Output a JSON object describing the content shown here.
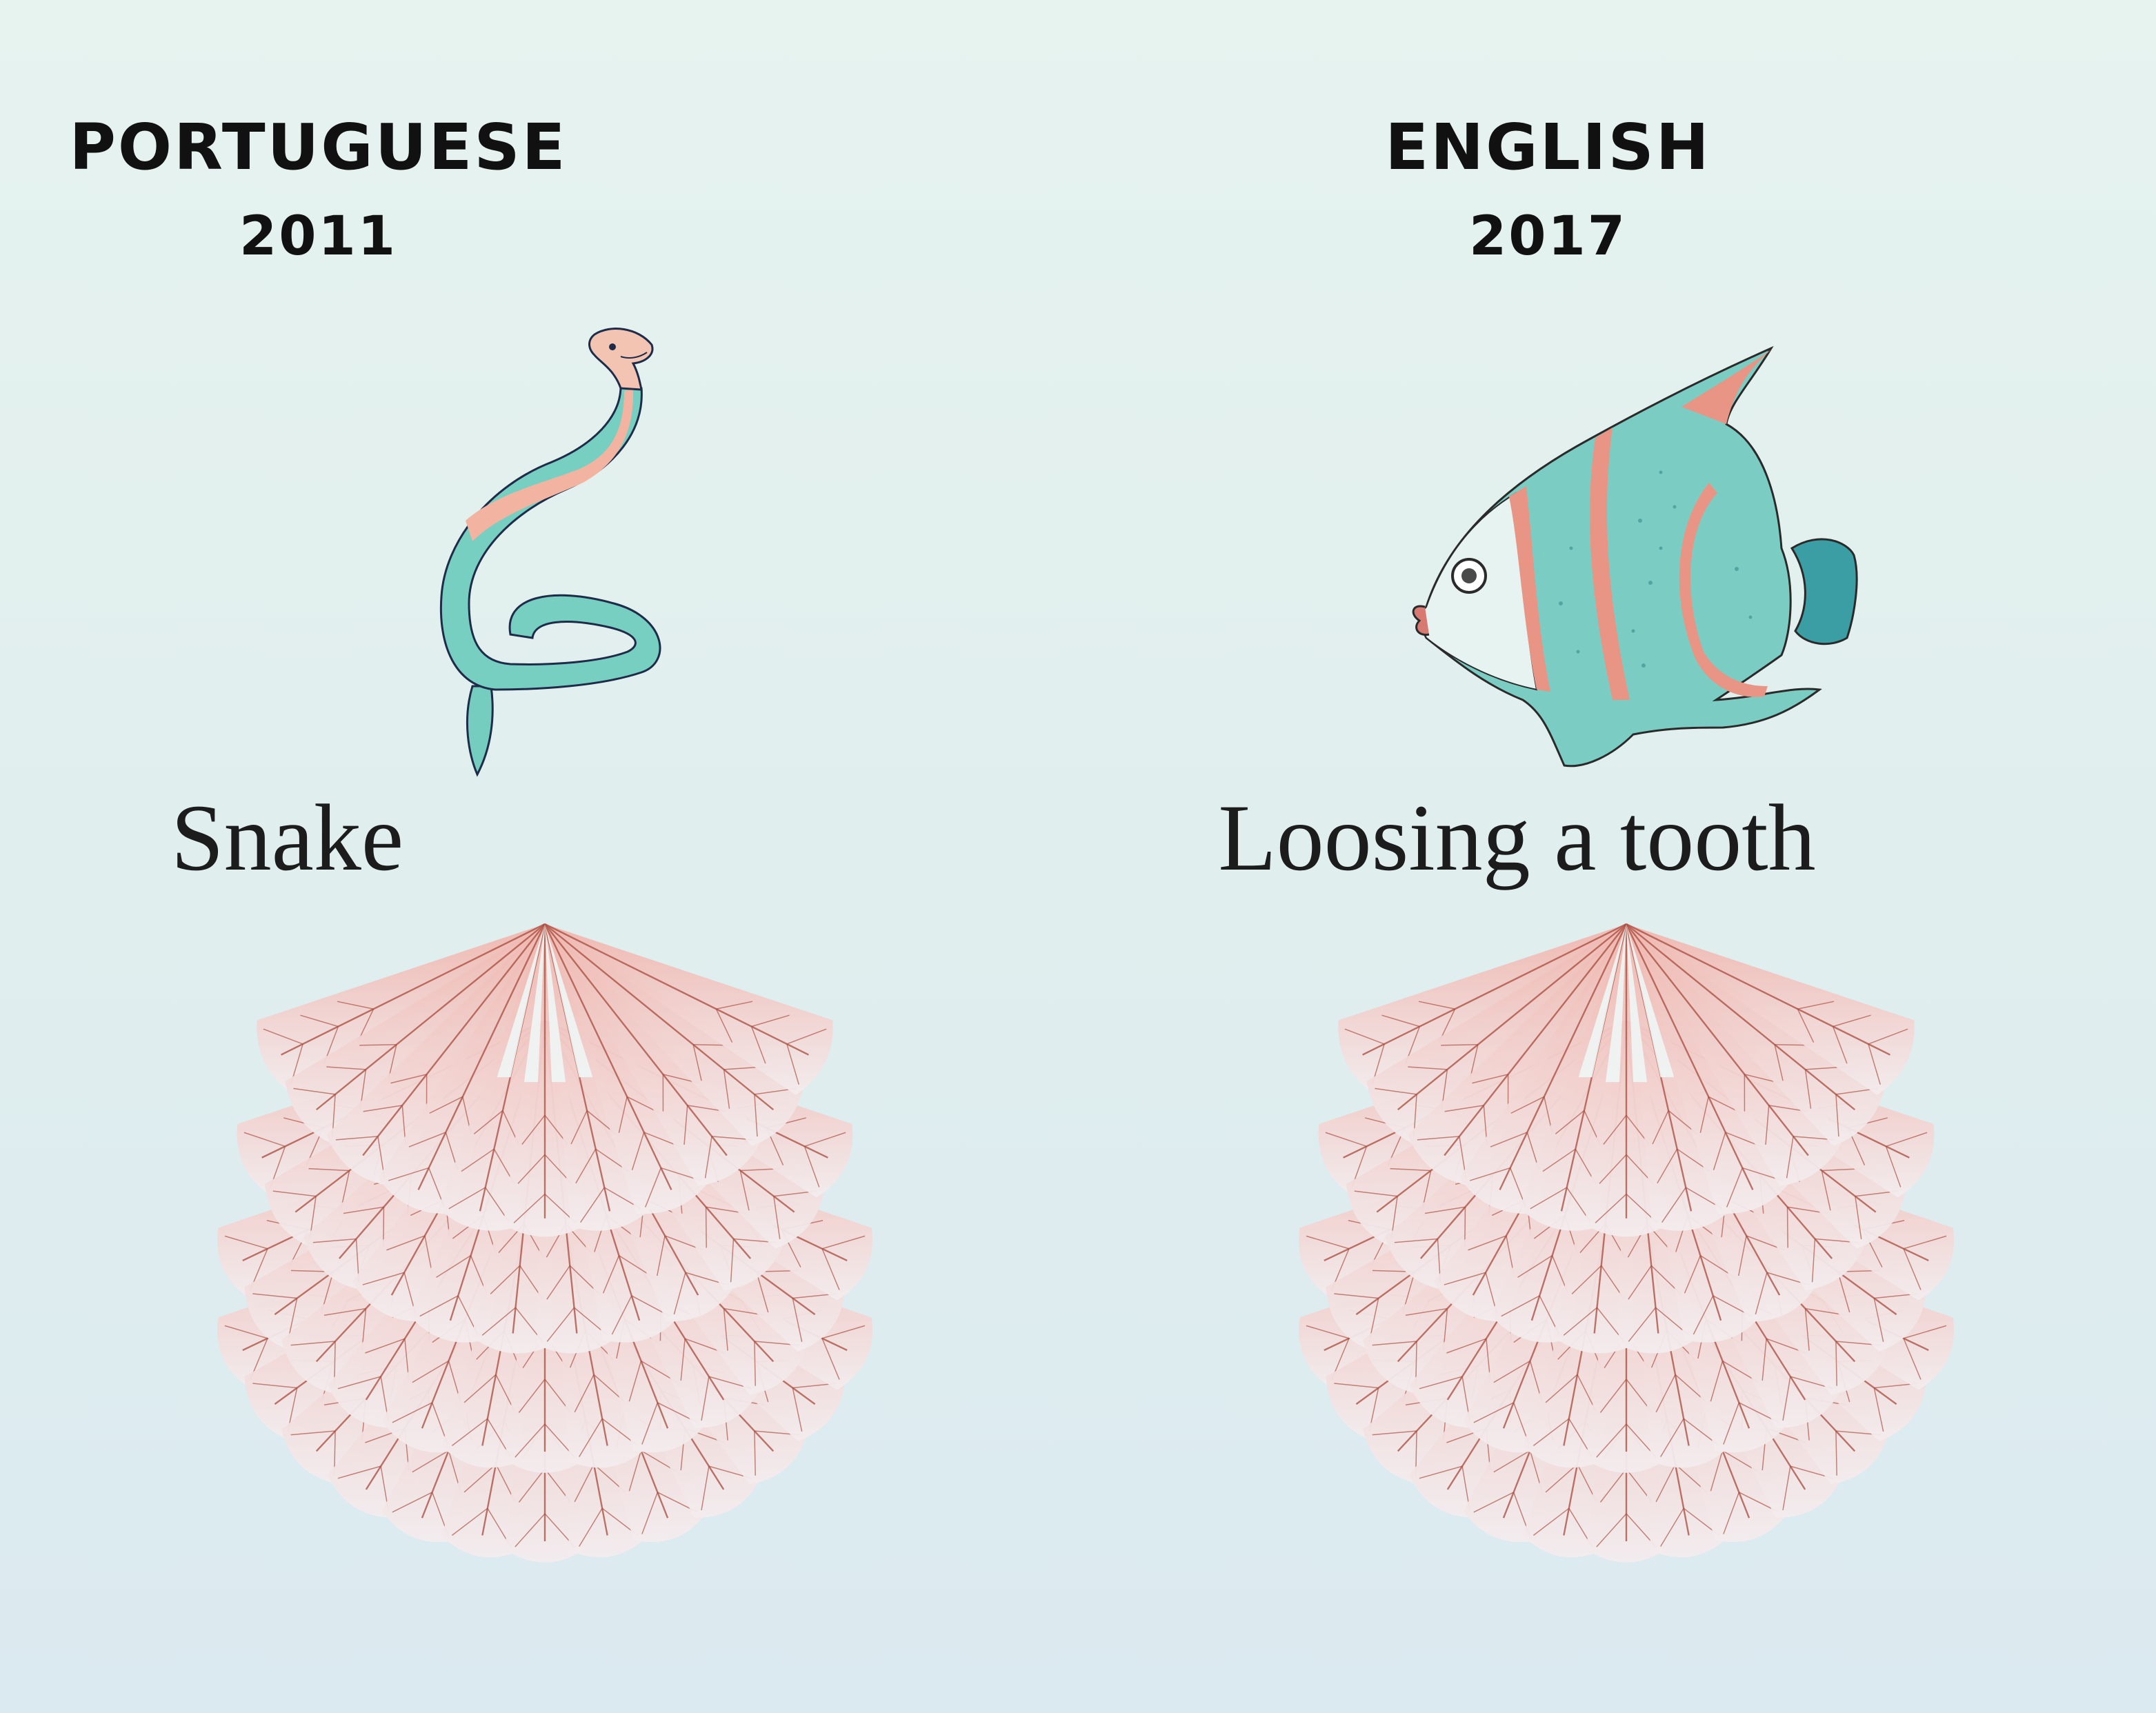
{
  "columns": [
    {
      "id": "portuguese",
      "language": "PORTUGUESE",
      "year": "2011",
      "word": "Snake",
      "illustration": "snake-icon"
    },
    {
      "id": "english",
      "language": "ENGLISH",
      "year": "2017",
      "word": "Loosing a tooth",
      "illustration": "angelfish-icon"
    }
  ],
  "colors": {
    "background_top": "#e6f3ef",
    "background_bottom": "#dbeaf0",
    "text": "#111111",
    "teal": "#6fc9bb",
    "salmon": "#e79a8c",
    "fan_pink": "#f0b6ae",
    "fan_vein": "#a84a3c"
  }
}
